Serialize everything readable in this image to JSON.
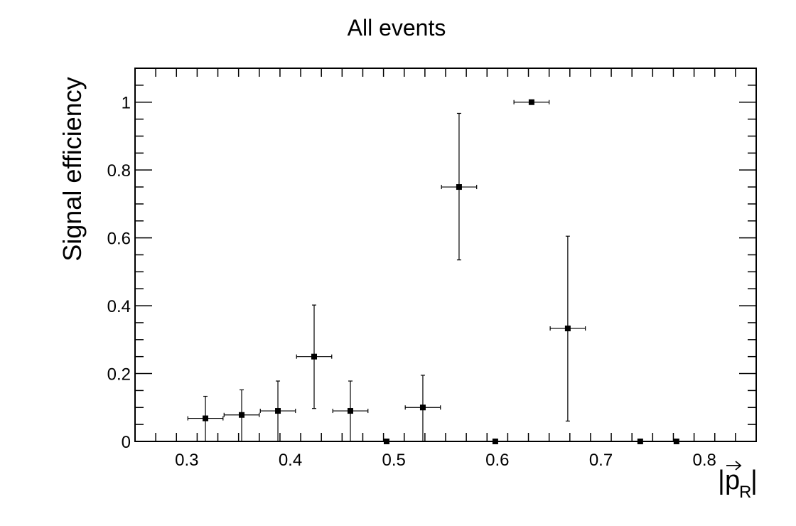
{
  "chart_data": {
    "type": "scatter",
    "title": "All events",
    "xlabel": "|p⃗_R|",
    "xlabel_parts": {
      "pipe_left": "|",
      "symbol": "p",
      "subscript": "R",
      "pipe_right": "|"
    },
    "ylabel": "Signal efficiency",
    "xlim": [
      0.25,
      0.85
    ],
    "ylim": [
      0,
      1.1
    ],
    "xticks": [
      0.3,
      0.4,
      0.5,
      0.6,
      0.7,
      0.8
    ],
    "xtick_labels": [
      "0.3",
      "0.4",
      "0.5",
      "0.6",
      "0.7",
      "0.8"
    ],
    "yticks": [
      0,
      0.2,
      0.4,
      0.6,
      0.8,
      1
    ],
    "ytick_labels": [
      "0",
      "0.2",
      "0.4",
      "0.6",
      "0.8",
      "1"
    ],
    "grid": false,
    "marker": "square",
    "color": "#000000",
    "points": [
      {
        "x": 0.318,
        "y": 0.068,
        "x_err": 0.017,
        "y_lo": 0.0,
        "y_hi": 0.133
      },
      {
        "x": 0.353,
        "y": 0.078,
        "x_err": 0.017,
        "y_lo": 0.0,
        "y_hi": 0.152
      },
      {
        "x": 0.388,
        "y": 0.09,
        "x_err": 0.017,
        "y_lo": 0.0,
        "y_hi": 0.178
      },
      {
        "x": 0.423,
        "y": 0.25,
        "x_err": 0.017,
        "y_lo": 0.097,
        "y_hi": 0.402
      },
      {
        "x": 0.458,
        "y": 0.09,
        "x_err": 0.017,
        "y_lo": 0.0,
        "y_hi": 0.178
      },
      {
        "x": 0.493,
        "y": 0.0,
        "x_err": 0.0,
        "y_lo": 0.0,
        "y_hi": 0.0
      },
      {
        "x": 0.528,
        "y": 0.1,
        "x_err": 0.017,
        "y_lo": 0.0,
        "y_hi": 0.195
      },
      {
        "x": 0.563,
        "y": 0.75,
        "x_err": 0.017,
        "y_lo": 0.535,
        "y_hi": 0.967
      },
      {
        "x": 0.598,
        "y": 0.0,
        "x_err": 0.0,
        "y_lo": 0.0,
        "y_hi": 0.0
      },
      {
        "x": 0.633,
        "y": 1.0,
        "x_err": 0.017,
        "y_lo": 1.0,
        "y_hi": 1.0
      },
      {
        "x": 0.668,
        "y": 0.333,
        "x_err": 0.017,
        "y_lo": 0.06,
        "y_hi": 0.605
      },
      {
        "x": 0.738,
        "y": 0.0,
        "x_err": 0.0,
        "y_lo": 0.0,
        "y_hi": 0.0
      },
      {
        "x": 0.773,
        "y": 0.0,
        "x_err": 0.0,
        "y_lo": 0.0,
        "y_hi": 0.0
      }
    ]
  }
}
